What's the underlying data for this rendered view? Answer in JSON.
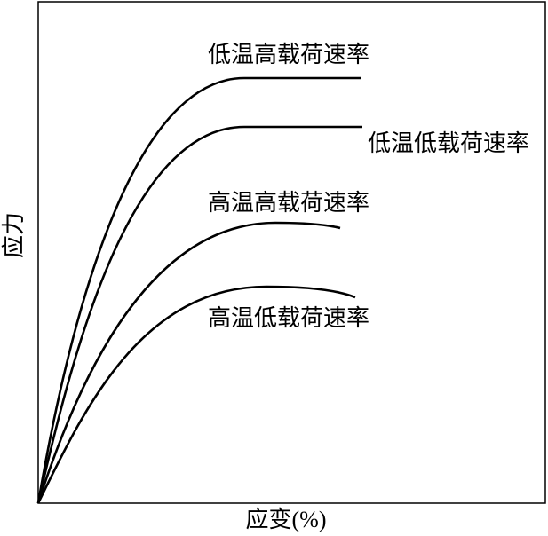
{
  "x_axis_label": "应变(%)",
  "y_axis_label": "应力",
  "curves": [
    {
      "label": "低温高载荷速率"
    },
    {
      "label": "低温低载荷速率"
    },
    {
      "label": "高温高载荷速率"
    },
    {
      "label": "高温低载荷速率"
    }
  ]
}
